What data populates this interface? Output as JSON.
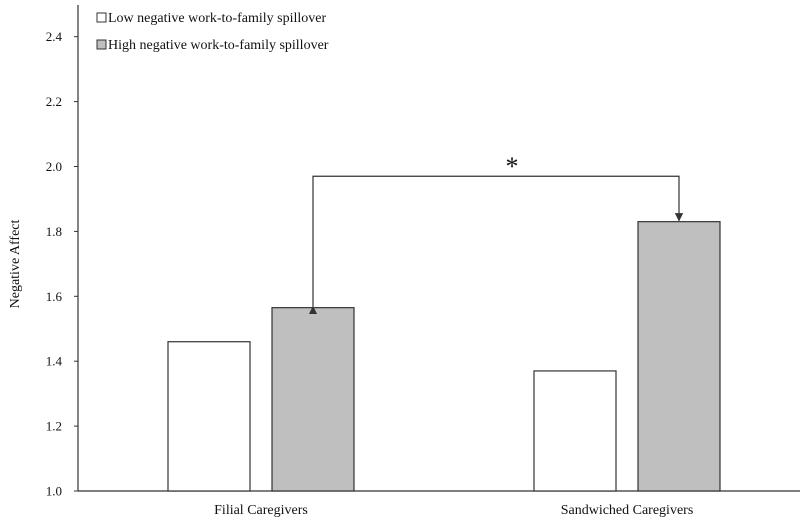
{
  "chart_data": {
    "type": "bar",
    "categories": [
      "Filial Caregivers",
      "Sandwiched Caregivers"
    ],
    "series": [
      {
        "name": "Low negative work-to-family spillover",
        "values": [
          1.46,
          1.37
        ],
        "color": "#ffffff"
      },
      {
        "name": "High negative work-to-family spillover",
        "values": [
          1.565,
          1.83
        ],
        "color": "#bfbfbf"
      }
    ],
    "title": "",
    "xlabel": "",
    "ylabel": "Negative Affect",
    "ylim": [
      1.0,
      2.5
    ],
    "yticks": [
      "1.0",
      "1.2",
      "1.4",
      "1.6",
      "1.8",
      "2.0",
      "2.2",
      "2.4"
    ],
    "ytick_values": [
      1.0,
      1.2,
      1.4,
      1.6,
      1.8,
      2.0,
      2.2,
      2.4
    ],
    "grid": false,
    "legend_position": "top-left",
    "annotation": {
      "text": "*",
      "from": {
        "category": 0,
        "series": 1
      },
      "to": {
        "category": 1,
        "series": 1
      },
      "bracket_value": 1.97
    }
  }
}
